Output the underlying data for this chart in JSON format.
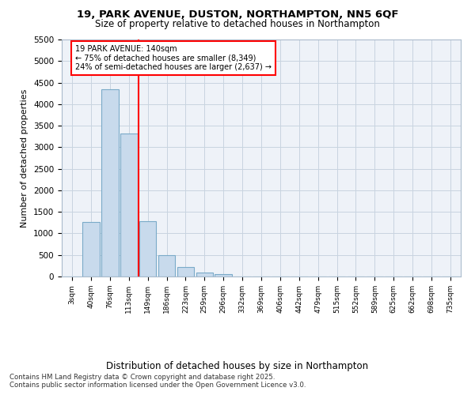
{
  "title1": "19, PARK AVENUE, DUSTON, NORTHAMPTON, NN5 6QF",
  "title2": "Size of property relative to detached houses in Northampton",
  "xlabel": "Distribution of detached houses by size in Northampton",
  "ylabel": "Number of detached properties",
  "categories": [
    "3sqm",
    "40sqm",
    "76sqm",
    "113sqm",
    "149sqm",
    "186sqm",
    "223sqm",
    "259sqm",
    "296sqm",
    "332sqm",
    "369sqm",
    "406sqm",
    "442sqm",
    "479sqm",
    "515sqm",
    "552sqm",
    "589sqm",
    "625sqm",
    "662sqm",
    "698sqm",
    "735sqm"
  ],
  "values": [
    0,
    1270,
    4350,
    3320,
    1280,
    500,
    215,
    85,
    55,
    0,
    0,
    0,
    0,
    0,
    0,
    0,
    0,
    0,
    0,
    0,
    0
  ],
  "bar_color": "#c8daec",
  "bar_edgecolor": "#7aaac8",
  "vline_color": "red",
  "vline_pos": 3.5,
  "annotation_title": "19 PARK AVENUE: 140sqm",
  "annotation_line1": "← 75% of detached houses are smaller (8,349)",
  "annotation_line2": "24% of semi-detached houses are larger (2,637) →",
  "ylim": [
    0,
    5500
  ],
  "yticks": [
    0,
    500,
    1000,
    1500,
    2000,
    2500,
    3000,
    3500,
    4000,
    4500,
    5000,
    5500
  ],
  "footnote1": "Contains HM Land Registry data © Crown copyright and database right 2025.",
  "footnote2": "Contains public sector information licensed under the Open Government Licence v3.0.",
  "bg_color": "#ffffff",
  "plot_bg_color": "#eef2f8",
  "grid_color": "#c8d4e0"
}
